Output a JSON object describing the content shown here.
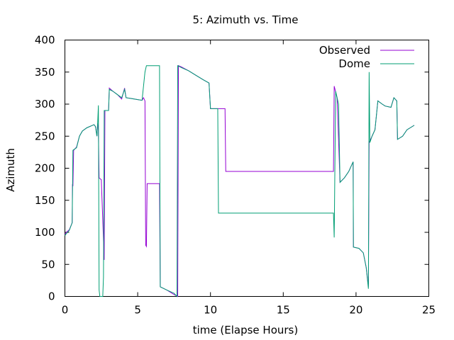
{
  "colors": {
    "observed": "#9400d3",
    "dome": "#009e73"
  },
  "chart_data": {
    "type": "line",
    "title": "5: Azimuth vs. Time",
    "xlabel": "time (Elapse Hours)",
    "ylabel": "Azimuth",
    "xlim": [
      0,
      25
    ],
    "ylim": [
      0,
      400
    ],
    "xticks": [
      0,
      5,
      10,
      15,
      20,
      25
    ],
    "yticks": [
      0,
      50,
      100,
      150,
      200,
      250,
      300,
      350,
      400
    ],
    "grid": false,
    "legend_position": "top-right",
    "series": [
      {
        "name": "Observed",
        "color_key": "observed",
        "points": [
          [
            0.0,
            97
          ],
          [
            0.1,
            100
          ],
          [
            0.3,
            104
          ],
          [
            0.5,
            115
          ],
          [
            0.52,
            175
          ],
          [
            0.55,
            172
          ],
          [
            0.6,
            228
          ],
          [
            0.8,
            233
          ],
          [
            1.0,
            250
          ],
          [
            1.2,
            258
          ],
          [
            1.5,
            263
          ],
          [
            1.8,
            266
          ],
          [
            2.0,
            268
          ],
          [
            2.1,
            265
          ],
          [
            2.2,
            250
          ],
          [
            2.25,
            270
          ],
          [
            2.3,
            260
          ],
          [
            2.35,
            185
          ],
          [
            2.5,
            182
          ],
          [
            2.6,
            120
          ],
          [
            2.7,
            57
          ],
          [
            2.75,
            290
          ],
          [
            3.0,
            290
          ],
          [
            3.05,
            325
          ],
          [
            3.3,
            320
          ],
          [
            3.6,
            315
          ],
          [
            3.9,
            308
          ],
          [
            4.1,
            325
          ],
          [
            4.2,
            310
          ],
          [
            4.5,
            309
          ],
          [
            5.0,
            307
          ],
          [
            5.3,
            306
          ],
          [
            5.4,
            310
          ],
          [
            5.5,
            305
          ],
          [
            5.55,
            80
          ],
          [
            5.6,
            78
          ],
          [
            5.65,
            176
          ],
          [
            6.0,
            176
          ],
          [
            6.5,
            176
          ],
          [
            6.55,
            15
          ],
          [
            7.0,
            10
          ],
          [
            7.5,
            3
          ],
          [
            7.75,
            0
          ],
          [
            7.8,
            360
          ],
          [
            8.0,
            358
          ],
          [
            8.5,
            352
          ],
          [
            9.0,
            345
          ],
          [
            9.5,
            338
          ],
          [
            9.9,
            333
          ],
          [
            10.0,
            293
          ],
          [
            10.5,
            293
          ],
          [
            11.0,
            293
          ],
          [
            11.05,
            195
          ],
          [
            14.0,
            195
          ],
          [
            18.45,
            195
          ],
          [
            18.5,
            328
          ],
          [
            18.7,
            310
          ],
          [
            18.9,
            178
          ],
          [
            19.2,
            185
          ],
          [
            19.5,
            195
          ],
          [
            19.7,
            205
          ],
          [
            19.8,
            210
          ],
          [
            19.82,
            77
          ],
          [
            20.2,
            75
          ],
          [
            20.5,
            68
          ],
          [
            20.7,
            45
          ],
          [
            20.85,
            15
          ],
          [
            20.9,
            240
          ],
          [
            21.1,
            250
          ],
          [
            21.3,
            260
          ],
          [
            21.5,
            305
          ],
          [
            21.8,
            300
          ],
          [
            22.0,
            297
          ],
          [
            22.4,
            295
          ],
          [
            22.6,
            310
          ],
          [
            22.8,
            305
          ],
          [
            22.85,
            245
          ],
          [
            23.2,
            250
          ],
          [
            23.5,
            260
          ],
          [
            24.0,
            267
          ]
        ]
      },
      {
        "name": "Dome",
        "color_key": "dome",
        "points": [
          [
            0.0,
            95
          ],
          [
            0.1,
            98
          ],
          [
            0.3,
            103
          ],
          [
            0.5,
            115
          ],
          [
            0.55,
            228
          ],
          [
            0.8,
            232
          ],
          [
            1.0,
            250
          ],
          [
            1.2,
            258
          ],
          [
            1.5,
            263
          ],
          [
            1.8,
            266
          ],
          [
            2.0,
            268
          ],
          [
            2.1,
            265
          ],
          [
            2.2,
            250
          ],
          [
            2.25,
            270
          ],
          [
            2.3,
            298
          ],
          [
            2.35,
            10
          ],
          [
            2.4,
            0
          ],
          [
            2.6,
            0
          ],
          [
            2.65,
            30
          ],
          [
            2.7,
            290
          ],
          [
            3.0,
            290
          ],
          [
            3.05,
            323
          ],
          [
            3.3,
            320
          ],
          [
            3.6,
            315
          ],
          [
            3.9,
            310
          ],
          [
            4.1,
            323
          ],
          [
            4.2,
            310
          ],
          [
            4.5,
            309
          ],
          [
            5.0,
            307
          ],
          [
            5.3,
            306
          ],
          [
            5.5,
            350
          ],
          [
            5.6,
            360
          ],
          [
            6.0,
            360
          ],
          [
            6.5,
            360
          ],
          [
            6.55,
            15
          ],
          [
            7.0,
            10
          ],
          [
            7.5,
            5
          ],
          [
            7.7,
            0
          ],
          [
            7.75,
            360
          ],
          [
            8.0,
            357
          ],
          [
            8.5,
            352
          ],
          [
            9.0,
            345
          ],
          [
            9.5,
            338
          ],
          [
            9.9,
            333
          ],
          [
            10.0,
            293
          ],
          [
            10.5,
            293
          ],
          [
            10.55,
            130
          ],
          [
            14.0,
            130
          ],
          [
            18.45,
            130
          ],
          [
            18.5,
            92
          ],
          [
            18.6,
            320
          ],
          [
            18.8,
            300
          ],
          [
            18.9,
            178
          ],
          [
            19.2,
            185
          ],
          [
            19.5,
            195
          ],
          [
            19.7,
            205
          ],
          [
            19.8,
            210
          ],
          [
            19.82,
            77
          ],
          [
            20.2,
            75
          ],
          [
            20.5,
            68
          ],
          [
            20.7,
            45
          ],
          [
            20.85,
            12
          ],
          [
            20.9,
            350
          ],
          [
            20.95,
            240
          ],
          [
            21.1,
            250
          ],
          [
            21.3,
            260
          ],
          [
            21.5,
            305
          ],
          [
            21.8,
            300
          ],
          [
            22.0,
            297
          ],
          [
            22.4,
            295
          ],
          [
            22.6,
            310
          ],
          [
            22.8,
            305
          ],
          [
            22.85,
            245
          ],
          [
            23.2,
            250
          ],
          [
            23.5,
            260
          ],
          [
            24.0,
            267
          ]
        ]
      }
    ]
  }
}
